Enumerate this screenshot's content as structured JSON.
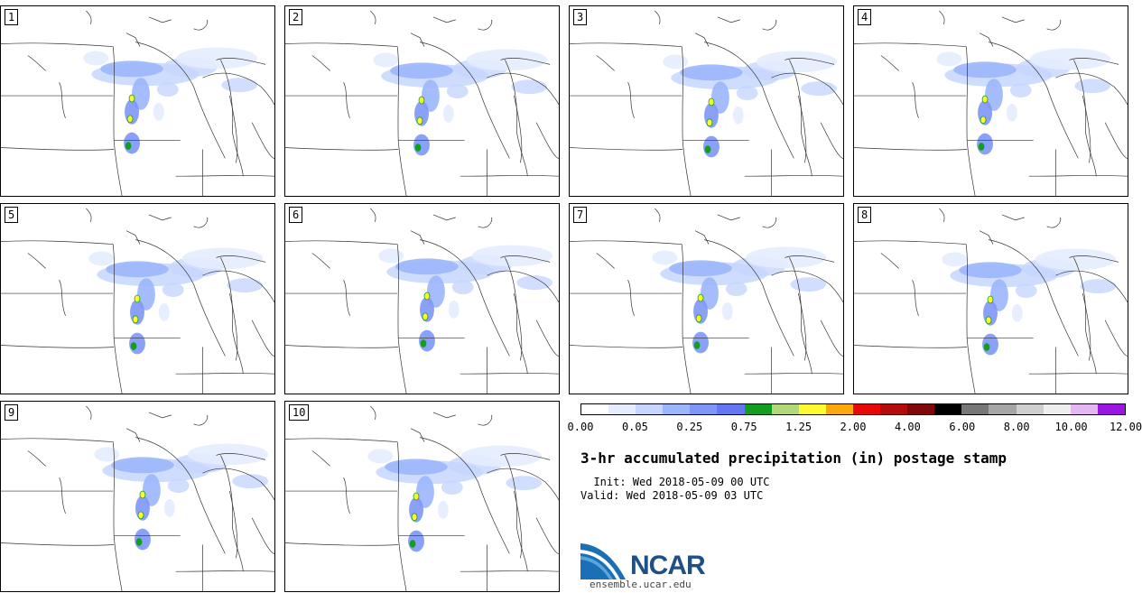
{
  "panels": [
    "1",
    "2",
    "3",
    "4",
    "5",
    "6",
    "7",
    "8",
    "9",
    "10"
  ],
  "colorbar": {
    "colors": [
      "#ffffff",
      "#e4ecfe",
      "#c6d6fe",
      "#9bb6fc",
      "#7e97f6",
      "#6576f2",
      "#139e22",
      "#b2d877",
      "#fefa31",
      "#fba70e",
      "#e70808",
      "#b40b0b",
      "#800808",
      "#000000",
      "#777777",
      "#a6a6a6",
      "#cfcfcf",
      "#eeeeee",
      "#e4b6f2",
      "#9b16e1"
    ],
    "tick_labels": [
      "0.00",
      "0.05",
      "0.25",
      "0.75",
      "1.25",
      "2.00",
      "4.00",
      "6.00",
      "8.00",
      "10.00",
      "12.00"
    ]
  },
  "title": "3-hr accumulated precipitation (in) postage stamp",
  "init_line": "  Init: Wed 2018-05-09 00 UTC",
  "valid_line": "Valid: Wed 2018-05-09 03 UTC",
  "logo_text": "NCAR",
  "url": "ensemble.ucar.edu"
}
